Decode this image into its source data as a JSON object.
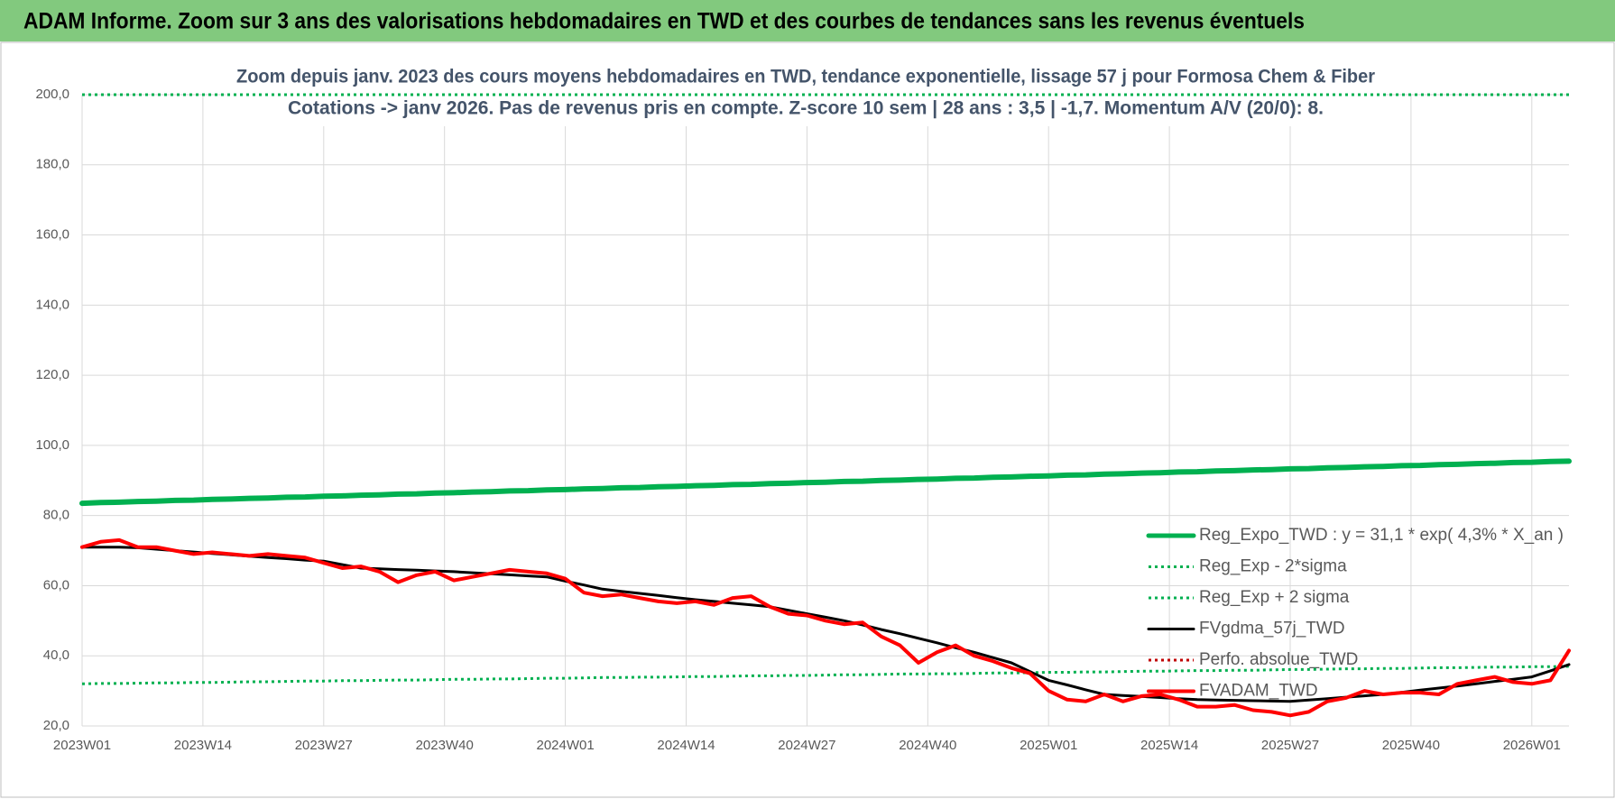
{
  "header": {
    "title": "ADAM Informe. Zoom sur 3 ans des valorisations hebdomadaires en TWD et des courbes de tendances sans les revenus éventuels"
  },
  "chart_data": {
    "type": "line",
    "title": "Zoom depuis janv. 2023 des cours moyens hebdomadaires en TWD, tendance exponentielle, lissage 57 j pour Formosa Chem & Fiber",
    "subtitle": "Cotations -> janv 2026. Pas de revenus pris en compte. Z-score 10 sem | 28 ans : 3,5 | -1,7. Momentum A/V (20/0): 8.",
    "x": [
      0,
      2,
      4,
      6,
      8,
      10,
      12,
      14,
      16,
      18,
      20,
      22,
      24,
      26,
      28,
      30,
      32,
      34,
      36,
      38,
      40,
      42,
      44,
      46,
      48,
      50,
      52,
      54,
      56,
      58,
      60,
      62,
      64,
      66,
      68,
      70,
      72,
      74,
      76,
      78,
      80,
      82,
      84,
      86,
      88,
      90,
      92,
      94,
      96,
      98,
      100,
      102,
      104,
      106,
      108,
      110,
      112,
      114,
      116,
      118,
      120,
      122,
      124,
      126,
      128,
      130,
      132,
      134,
      136,
      138,
      140,
      142,
      144,
      146,
      148,
      150,
      152,
      154,
      156,
      158,
      160
    ],
    "xlim": [
      0,
      160
    ],
    "xticks": [
      {
        "value": 0,
        "label": "2023W01"
      },
      {
        "value": 13,
        "label": "2023W14"
      },
      {
        "value": 26,
        "label": "2023W27"
      },
      {
        "value": 39,
        "label": "2023W40"
      },
      {
        "value": 52,
        "label": "2024W01"
      },
      {
        "value": 65,
        "label": "2024W14"
      },
      {
        "value": 78,
        "label": "2024W27"
      },
      {
        "value": 91,
        "label": "2024W40"
      },
      {
        "value": 104,
        "label": "2025W01"
      },
      {
        "value": 117,
        "label": "2025W14"
      },
      {
        "value": 130,
        "label": "2025W27"
      },
      {
        "value": 143,
        "label": "2025W40"
      },
      {
        "value": 156,
        "label": "2026W01"
      }
    ],
    "ylim": [
      20,
      200
    ],
    "yticks": [
      {
        "value": 20,
        "label": "20,0"
      },
      {
        "value": 40,
        "label": "40,0"
      },
      {
        "value": 60,
        "label": "60,0"
      },
      {
        "value": 80,
        "label": "80,0"
      },
      {
        "value": 100,
        "label": "100,0"
      },
      {
        "value": 120,
        "label": "120,0"
      },
      {
        "value": 140,
        "label": "140,0"
      },
      {
        "value": 160,
        "label": "160,0"
      },
      {
        "value": 180,
        "label": "180,0"
      },
      {
        "value": 200,
        "label": "200,0"
      }
    ],
    "grid": true,
    "legend": "right",
    "series": [
      {
        "name": "Reg_Expo_TWD : y = 31,1 * exp( 4,3% *  X_an )",
        "color": "#00b050",
        "style": "solid",
        "values": [
          83.5,
          83.7,
          83.8,
          84.0,
          84.1,
          84.3,
          84.4,
          84.6,
          84.7,
          84.9,
          85.0,
          85.2,
          85.3,
          85.5,
          85.6,
          85.8,
          85.9,
          86.1,
          86.2,
          86.4,
          86.5,
          86.7,
          86.8,
          87.0,
          87.1,
          87.3,
          87.4,
          87.6,
          87.7,
          87.9,
          88.0,
          88.2,
          88.3,
          88.5,
          88.6,
          88.8,
          88.9,
          89.1,
          89.2,
          89.4,
          89.5,
          89.7,
          89.8,
          90.0,
          90.1,
          90.3,
          90.4,
          90.6,
          90.7,
          90.9,
          91.0,
          91.2,
          91.3,
          91.5,
          91.6,
          91.8,
          91.9,
          92.1,
          92.2,
          92.4,
          92.5,
          92.7,
          92.8,
          93.0,
          93.1,
          93.3,
          93.4,
          93.6,
          93.7,
          93.9,
          94.0,
          94.2,
          94.3,
          94.5,
          94.6,
          94.8,
          94.9,
          95.1,
          95.2,
          95.4,
          95.5
        ]
      },
      {
        "name": "Reg_Exp - 2*sigma",
        "color": "#00b050",
        "style": "dotted",
        "values": [
          32.0,
          32.1,
          32.1,
          32.2,
          32.3,
          32.3,
          32.4,
          32.4,
          32.5,
          32.6,
          32.6,
          32.7,
          32.8,
          32.8,
          32.9,
          32.9,
          33.0,
          33.1,
          33.1,
          33.2,
          33.3,
          33.3,
          33.4,
          33.4,
          33.5,
          33.6,
          33.6,
          33.7,
          33.8,
          33.8,
          33.9,
          33.9,
          34.0,
          34.1,
          34.1,
          34.2,
          34.3,
          34.3,
          34.4,
          34.4,
          34.5,
          34.6,
          34.6,
          34.7,
          34.8,
          34.8,
          34.9,
          34.9,
          35.0,
          35.1,
          35.1,
          35.2,
          35.3,
          35.3,
          35.4,
          35.4,
          35.5,
          35.6,
          35.6,
          35.7,
          35.8,
          35.8,
          35.9,
          35.9,
          36.0,
          36.1,
          36.1,
          36.2,
          36.3,
          36.3,
          36.4,
          36.4,
          36.5,
          36.6,
          36.6,
          36.7,
          36.8,
          36.8,
          36.9,
          36.9,
          37.0
        ]
      },
      {
        "name": "Reg_Exp + 2 sigma",
        "color": "#00b050",
        "style": "dotted",
        "values": [
          200,
          200,
          200,
          200,
          200,
          200,
          200,
          200,
          200,
          200,
          200,
          200,
          200,
          200,
          200,
          200,
          200,
          200,
          200,
          200,
          200,
          200,
          200,
          200,
          200,
          200,
          200,
          200,
          200,
          200,
          200,
          200,
          200,
          200,
          200,
          200,
          200,
          200,
          200,
          200,
          200,
          200,
          200,
          200,
          200,
          200,
          200,
          200,
          200,
          200,
          200,
          200,
          200,
          200,
          200,
          200,
          200,
          200,
          200,
          200,
          200,
          200,
          200,
          200,
          200,
          200,
          200,
          200,
          200,
          200,
          200,
          200,
          200,
          200,
          200,
          200,
          200,
          200,
          200,
          200,
          200
        ]
      },
      {
        "name": "FVgdma_57j_TWD",
        "color": "#000000",
        "style": "solid",
        "values": [
          71,
          71,
          71,
          70.8,
          70.4,
          70,
          69.6,
          69.2,
          68.8,
          68.4,
          68,
          67.7,
          67.3,
          67,
          66,
          65,
          64.8,
          64.6,
          64.4,
          64.2,
          64,
          63.7,
          63.4,
          63.1,
          62.8,
          62.5,
          61.3,
          60.2,
          59,
          58.4,
          57.8,
          57.2,
          56.6,
          56,
          55.5,
          55,
          54.5,
          54,
          53,
          52,
          51,
          50,
          48.8,
          47.5,
          46.3,
          45,
          43.7,
          42.3,
          41,
          39.5,
          38,
          35.5,
          33,
          31.7,
          30.3,
          29,
          28.7,
          28.4,
          28.1,
          27.8,
          27.5,
          27.4,
          27.3,
          27.2,
          27.1,
          27,
          27.4,
          27.8,
          28.2,
          28.6,
          29,
          29.6,
          30.2,
          30.8,
          31.4,
          32,
          32.7,
          33.3,
          34,
          35.7,
          37.5
        ]
      },
      {
        "name": "Perfo. absolue_TWD",
        "color": "#c00000",
        "style": "dotted",
        "values": [
          null,
          null,
          null,
          null,
          null,
          null,
          null,
          null,
          null,
          null,
          null,
          null,
          null,
          null,
          null,
          null,
          null,
          null,
          null,
          null,
          null,
          null,
          null,
          null,
          null,
          null,
          null,
          null,
          null,
          null,
          null,
          null,
          null,
          null,
          null,
          null,
          null,
          null,
          null,
          null,
          null,
          null,
          null,
          null,
          null,
          null,
          null,
          null,
          null,
          null,
          null,
          null,
          null,
          null,
          null,
          null,
          null,
          null,
          null,
          null,
          null,
          null,
          null,
          null,
          null,
          null,
          null,
          null,
          null,
          null,
          null,
          null,
          null,
          null,
          null,
          null,
          null,
          null,
          null,
          null,
          null
        ]
      },
      {
        "name": "FVADAM_TWD",
        "color": "#ff0000",
        "style": "solid",
        "values": [
          71,
          72.5,
          73,
          71,
          71,
          70,
          69,
          69.5,
          69,
          68.5,
          69,
          68.5,
          68,
          66.5,
          65,
          65.5,
          64,
          61,
          63,
          64,
          61.5,
          62.5,
          63.5,
          64.5,
          64,
          63.5,
          62,
          58,
          57,
          57.5,
          56.5,
          55.5,
          55,
          55.5,
          54.5,
          56.5,
          57,
          54,
          52,
          51.5,
          50,
          49,
          49.5,
          45.5,
          43,
          38,
          41,
          43,
          40,
          38.5,
          36.5,
          35,
          30,
          27.5,
          27,
          29,
          27,
          28.5,
          29,
          27.5,
          25.5,
          25.5,
          26,
          24.5,
          24,
          23,
          24,
          27,
          28,
          30,
          29,
          29.5,
          29.5,
          29,
          32,
          33,
          34,
          32.5,
          32,
          33,
          41.5
        ]
      }
    ]
  }
}
